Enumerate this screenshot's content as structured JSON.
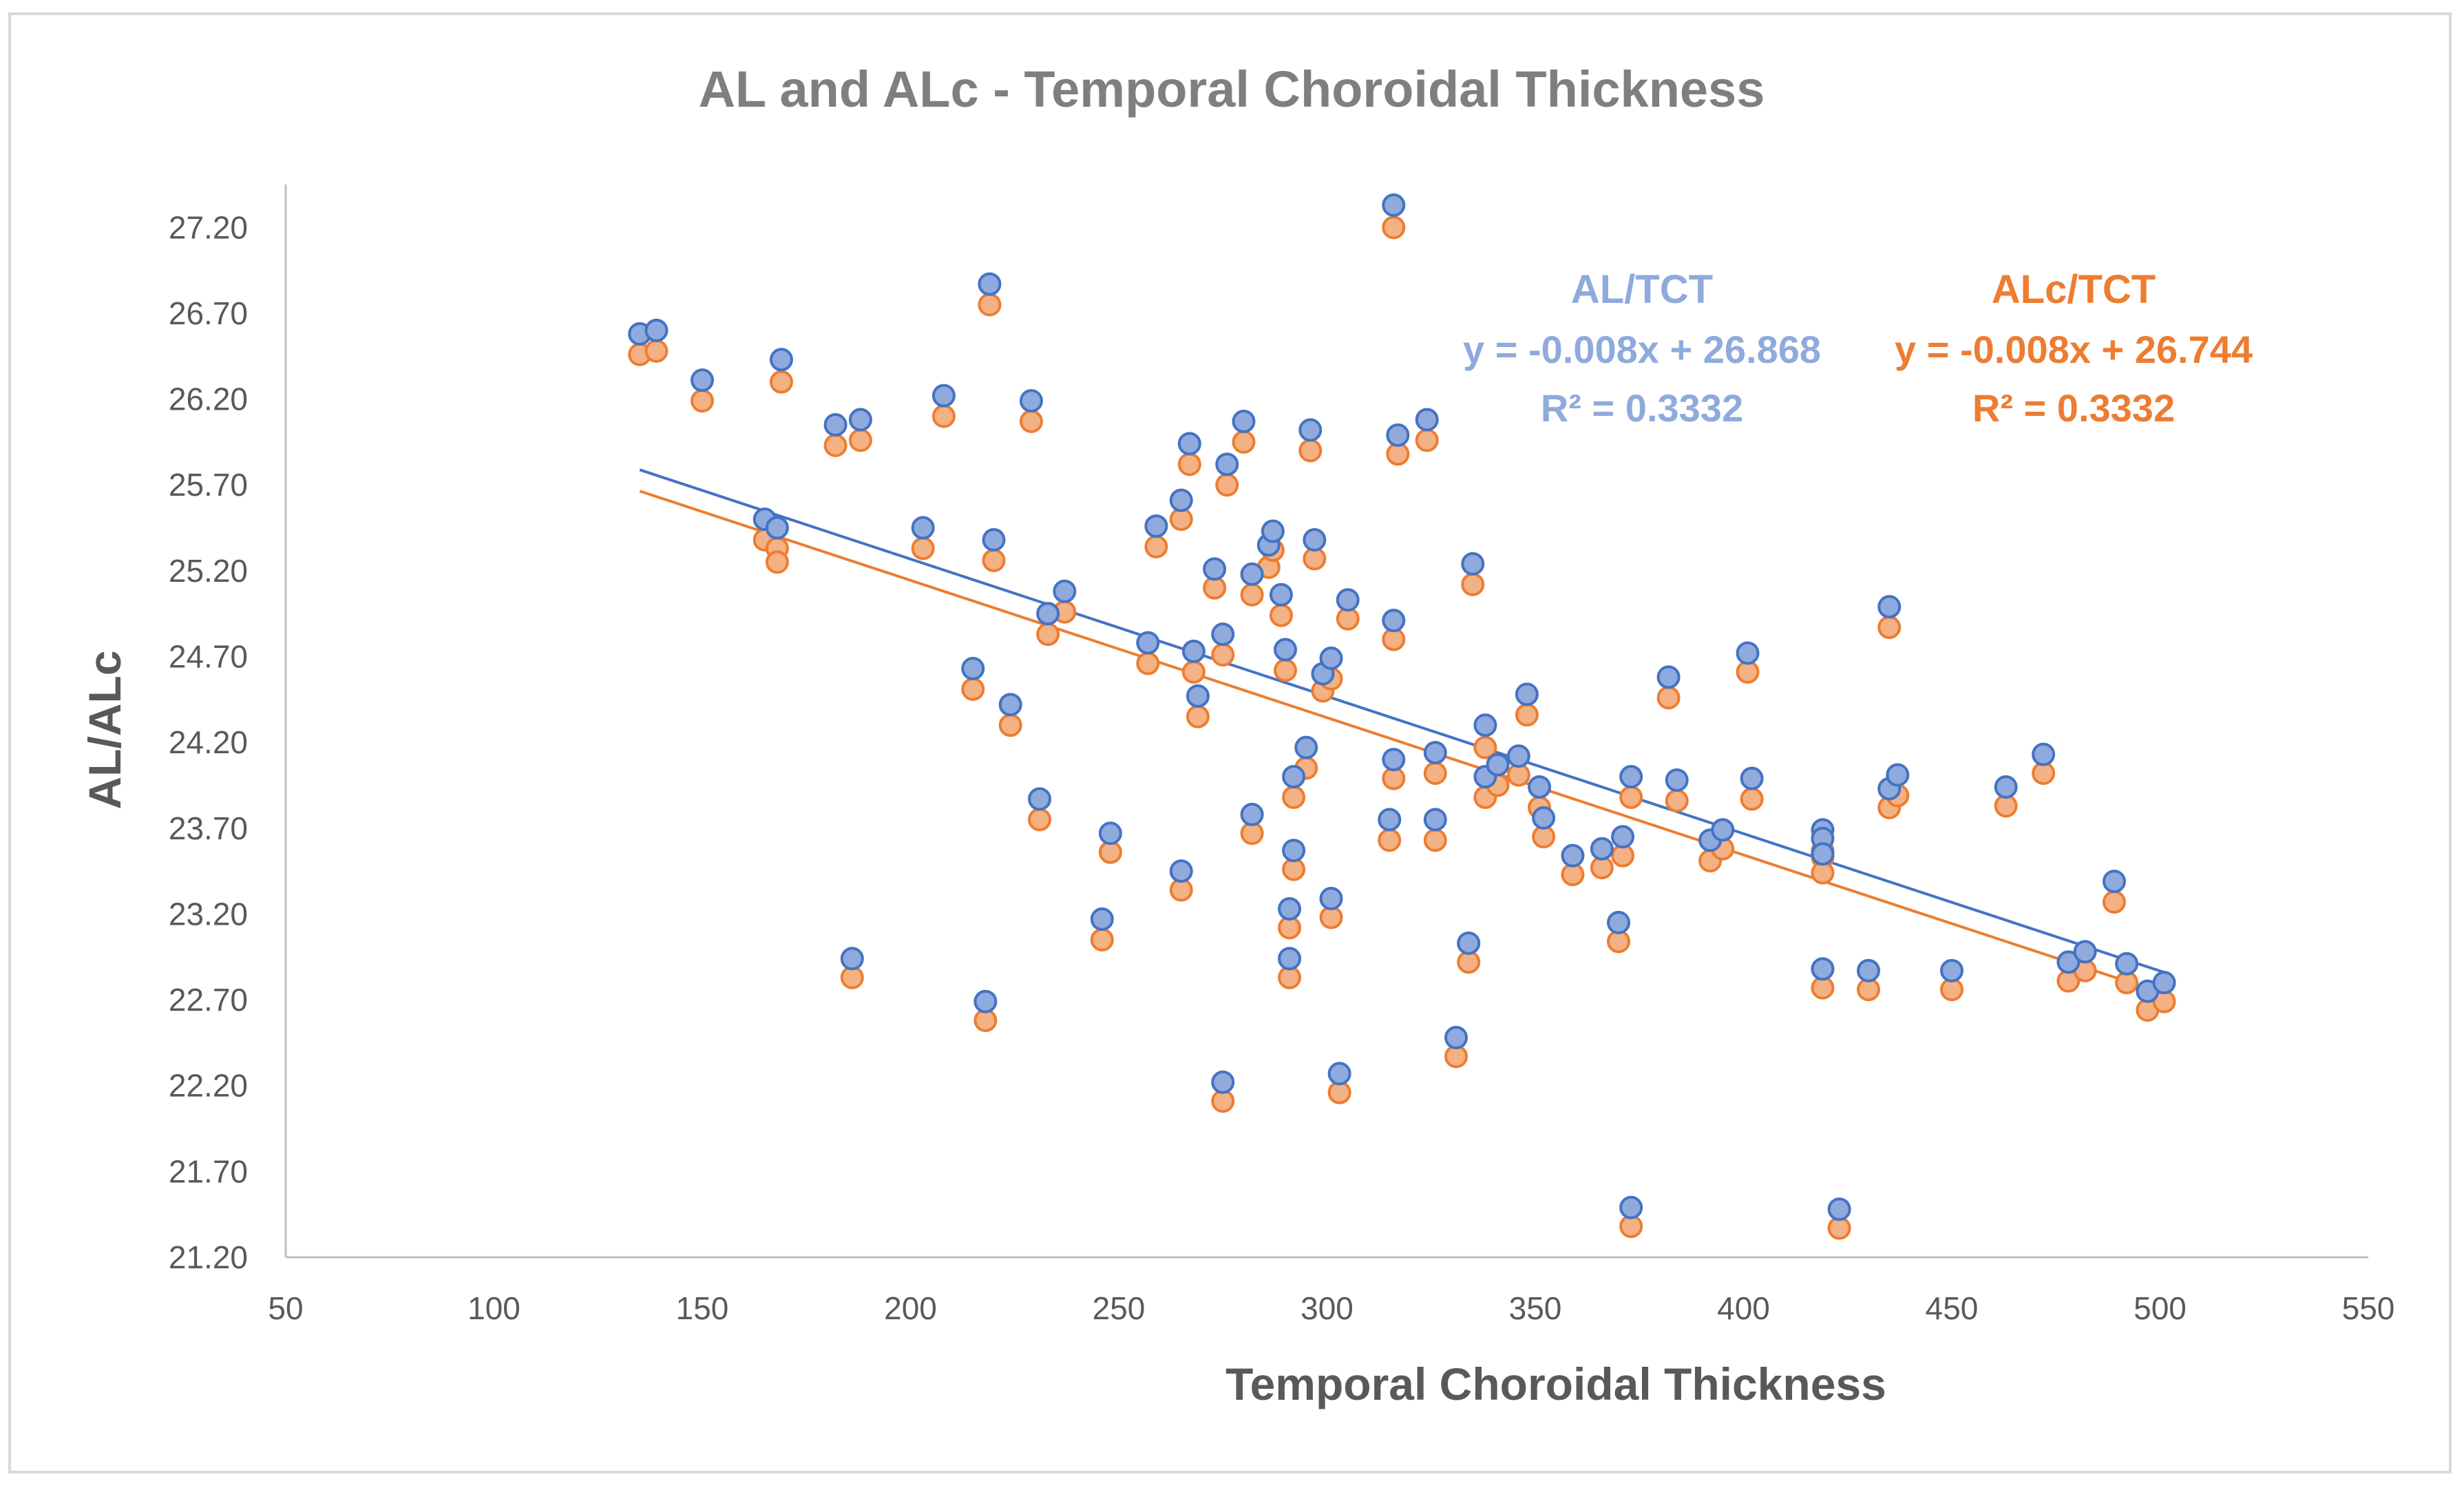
{
  "chart_data": {
    "type": "scatter",
    "title": "AL and ALc - Temporal Choroidal Thickness",
    "xlabel": "Temporal Choroidal Thickness",
    "ylabel": "AL/ALc",
    "xlim": [
      50,
      550
    ],
    "ylim": [
      21.2,
      27.45
    ],
    "x_ticks": [
      "50",
      "100",
      "150",
      "200",
      "250",
      "300",
      "350",
      "400",
      "450",
      "500",
      "550"
    ],
    "y_ticks": [
      "21.20",
      "21.70",
      "22.20",
      "22.70",
      "23.20",
      "23.70",
      "24.20",
      "24.70",
      "25.20",
      "25.70",
      "26.20",
      "26.70",
      "27.20"
    ],
    "grid": false,
    "legend": "none",
    "colors": {
      "al_fill": "#8faadc",
      "al_stroke": "#4472c4",
      "alc_fill": "#f4b183",
      "alc_stroke": "#ed7d31",
      "al_text": "#8faadc",
      "alc_text": "#ed7d31"
    },
    "annotations": {
      "al": {
        "title": "AL/TCT",
        "equation": "y = -0.008x + 26.868",
        "r2": "R² = 0.3332"
      },
      "alc": {
        "title": "ALc/TCT",
        "equation": "y = -0.008x + 26.744",
        "r2": "R² = 0.3332"
      }
    },
    "series": [
      {
        "name": "AL/TCT",
        "trendline": {
          "slope": -0.008,
          "intercept": 26.868,
          "x_range": [
            135,
            501
          ]
        },
        "points": [
          [
            135,
            26.58
          ],
          [
            139,
            26.6
          ],
          [
            150,
            26.31
          ],
          [
            165,
            25.5
          ],
          [
            168,
            25.45
          ],
          [
            169,
            26.43
          ],
          [
            182,
            26.05
          ],
          [
            186,
            22.94
          ],
          [
            188,
            26.08
          ],
          [
            203,
            25.45
          ],
          [
            208,
            26.22
          ],
          [
            215,
            24.63
          ],
          [
            218,
            22.69
          ],
          [
            219,
            26.87
          ],
          [
            220,
            25.38
          ],
          [
            224,
            24.42
          ],
          [
            229,
            26.19
          ],
          [
            231,
            23.87
          ],
          [
            233,
            24.95
          ],
          [
            237,
            25.08
          ],
          [
            246,
            23.17
          ],
          [
            248,
            23.67
          ],
          [
            257,
            24.78
          ],
          [
            259,
            25.46
          ],
          [
            265,
            25.61
          ],
          [
            265,
            23.45
          ],
          [
            267,
            25.94
          ],
          [
            268,
            24.73
          ],
          [
            269,
            24.47
          ],
          [
            273,
            25.21
          ],
          [
            275,
            24.83
          ],
          [
            275,
            22.22
          ],
          [
            276,
            25.82
          ],
          [
            280,
            26.07
          ],
          [
            282,
            25.18
          ],
          [
            282,
            23.78
          ],
          [
            286,
            25.35
          ],
          [
            287,
            25.43
          ],
          [
            289,
            25.06
          ],
          [
            290,
            24.74
          ],
          [
            291,
            23.23
          ],
          [
            291,
            22.94
          ],
          [
            292,
            24.0
          ],
          [
            292,
            23.57
          ],
          [
            295,
            24.17
          ],
          [
            296,
            26.02
          ],
          [
            297,
            25.38
          ],
          [
            299,
            24.6
          ],
          [
            301,
            24.69
          ],
          [
            301,
            23.29
          ],
          [
            303,
            22.27
          ],
          [
            305,
            25.03
          ],
          [
            315,
            23.75
          ],
          [
            316,
            27.33
          ],
          [
            316,
            24.91
          ],
          [
            316,
            24.1
          ],
          [
            317,
            25.99
          ],
          [
            324,
            26.08
          ],
          [
            326,
            24.14
          ],
          [
            326,
            23.75
          ],
          [
            331,
            22.48
          ],
          [
            334,
            23.03
          ],
          [
            335,
            25.24
          ],
          [
            338,
            24.3
          ],
          [
            338,
            24.0
          ],
          [
            341,
            24.07
          ],
          [
            346,
            24.12
          ],
          [
            348,
            24.48
          ],
          [
            351,
            23.94
          ],
          [
            352,
            23.76
          ],
          [
            359,
            23.54
          ],
          [
            366,
            23.58
          ],
          [
            370,
            23.15
          ],
          [
            371,
            23.65
          ],
          [
            373,
            24.0
          ],
          [
            373,
            21.49
          ],
          [
            382,
            24.58
          ],
          [
            384,
            23.98
          ],
          [
            392,
            23.63
          ],
          [
            395,
            23.69
          ],
          [
            401,
            24.72
          ],
          [
            402,
            23.99
          ],
          [
            419,
            23.69
          ],
          [
            419,
            23.64
          ],
          [
            419,
            23.55
          ],
          [
            419,
            22.88
          ],
          [
            423,
            21.48
          ],
          [
            430,
            22.87
          ],
          [
            435,
            23.93
          ],
          [
            435,
            24.99
          ],
          [
            437,
            24.01
          ],
          [
            450,
            22.87
          ],
          [
            463,
            23.94
          ],
          [
            472,
            24.13
          ],
          [
            478,
            22.92
          ],
          [
            482,
            22.98
          ],
          [
            489,
            23.39
          ],
          [
            492,
            22.91
          ],
          [
            497,
            22.75
          ],
          [
            501,
            22.8
          ]
        ]
      },
      {
        "name": "ALc/TCT",
        "trendline": {
          "slope": -0.008,
          "intercept": 26.744,
          "x_range": [
            135,
            501
          ]
        },
        "points": [
          [
            135,
            26.46
          ],
          [
            139,
            26.48
          ],
          [
            150,
            26.19
          ],
          [
            165,
            25.38
          ],
          [
            168,
            25.33
          ],
          [
            168,
            25.25
          ],
          [
            169,
            26.3
          ],
          [
            182,
            25.93
          ],
          [
            186,
            22.83
          ],
          [
            188,
            25.96
          ],
          [
            203,
            25.33
          ],
          [
            208,
            26.1
          ],
          [
            215,
            24.51
          ],
          [
            218,
            22.58
          ],
          [
            219,
            26.75
          ],
          [
            220,
            25.26
          ],
          [
            224,
            24.3
          ],
          [
            229,
            26.07
          ],
          [
            231,
            23.75
          ],
          [
            233,
            24.83
          ],
          [
            237,
            24.96
          ],
          [
            246,
            23.05
          ],
          [
            248,
            23.56
          ],
          [
            257,
            24.66
          ],
          [
            259,
            25.34
          ],
          [
            265,
            25.5
          ],
          [
            265,
            23.34
          ],
          [
            267,
            25.82
          ],
          [
            268,
            24.61
          ],
          [
            269,
            24.35
          ],
          [
            273,
            25.1
          ],
          [
            275,
            24.71
          ],
          [
            275,
            22.11
          ],
          [
            276,
            25.7
          ],
          [
            280,
            25.95
          ],
          [
            282,
            25.06
          ],
          [
            282,
            23.67
          ],
          [
            286,
            25.22
          ],
          [
            287,
            25.32
          ],
          [
            289,
            24.94
          ],
          [
            290,
            24.62
          ],
          [
            291,
            23.12
          ],
          [
            291,
            22.83
          ],
          [
            292,
            23.88
          ],
          [
            292,
            23.46
          ],
          [
            295,
            24.05
          ],
          [
            296,
            25.9
          ],
          [
            297,
            25.27
          ],
          [
            299,
            24.5
          ],
          [
            301,
            24.57
          ],
          [
            301,
            23.18
          ],
          [
            303,
            22.16
          ],
          [
            305,
            24.92
          ],
          [
            315,
            23.63
          ],
          [
            316,
            27.2
          ],
          [
            316,
            24.8
          ],
          [
            316,
            23.99
          ],
          [
            317,
            25.88
          ],
          [
            324,
            25.96
          ],
          [
            326,
            24.02
          ],
          [
            326,
            23.63
          ],
          [
            331,
            22.37
          ],
          [
            334,
            22.92
          ],
          [
            335,
            25.12
          ],
          [
            338,
            24.17
          ],
          [
            338,
            23.88
          ],
          [
            341,
            23.95
          ],
          [
            346,
            24.01
          ],
          [
            348,
            24.36
          ],
          [
            351,
            23.82
          ],
          [
            352,
            23.65
          ],
          [
            359,
            23.43
          ],
          [
            366,
            23.47
          ],
          [
            370,
            23.04
          ],
          [
            371,
            23.54
          ],
          [
            373,
            23.88
          ],
          [
            373,
            21.38
          ],
          [
            382,
            24.46
          ],
          [
            384,
            23.86
          ],
          [
            392,
            23.51
          ],
          [
            395,
            23.58
          ],
          [
            401,
            24.61
          ],
          [
            402,
            23.87
          ],
          [
            419,
            23.57
          ],
          [
            419,
            23.53
          ],
          [
            419,
            23.44
          ],
          [
            419,
            22.77
          ],
          [
            423,
            21.37
          ],
          [
            430,
            22.76
          ],
          [
            435,
            23.82
          ],
          [
            435,
            24.87
          ],
          [
            437,
            23.89
          ],
          [
            450,
            22.76
          ],
          [
            463,
            23.83
          ],
          [
            472,
            24.02
          ],
          [
            478,
            22.81
          ],
          [
            482,
            22.87
          ],
          [
            489,
            23.27
          ],
          [
            492,
            22.8
          ],
          [
            497,
            22.64
          ],
          [
            501,
            22.69
          ]
        ]
      }
    ]
  }
}
